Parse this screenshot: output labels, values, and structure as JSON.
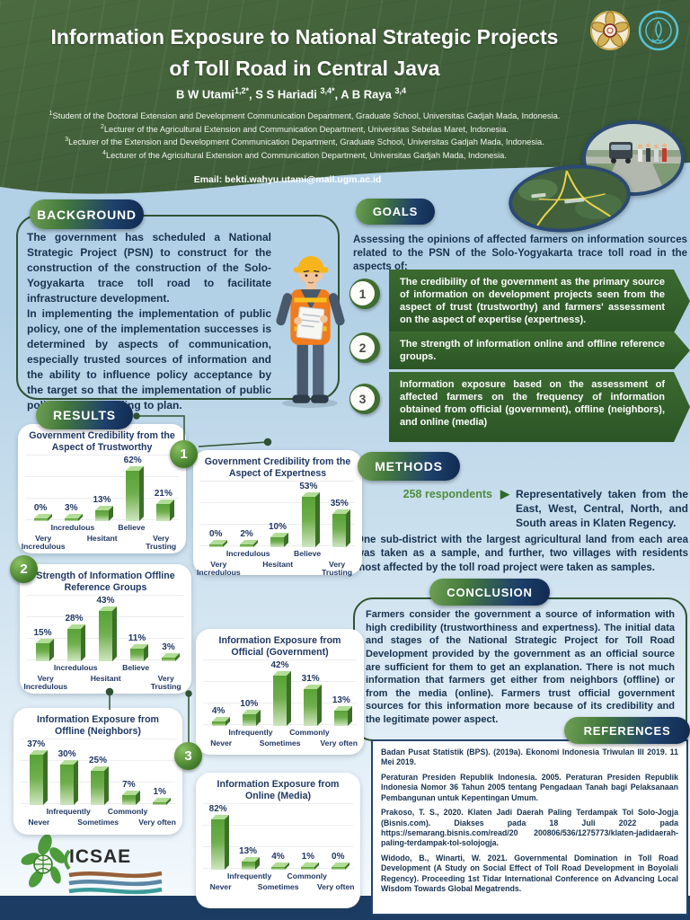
{
  "header": {
    "title_line1": "Information Exposure to National Strategic Projects",
    "title_line2": "of Toll Road in Central Java",
    "authors": [
      {
        "name": "B W Utami",
        "sup": "1,2*",
        "sep": ", "
      },
      {
        "name": "S S Hariadi ",
        "sup": "3,4*",
        "sep": ", "
      },
      {
        "name": "A B Raya ",
        "sup": "3,4",
        "sep": ""
      }
    ],
    "affiliations": [
      {
        "sup": "1",
        "text": "Student of the Doctoral Extension and Development Communication Department, Graduate School, Universitas Gadjah Mada, Indonesia."
      },
      {
        "sup": "2",
        "text": "Lecturer of the Agricultural Extension and Communication Department, Universitas Sebelas Maret, Indonesia."
      },
      {
        "sup": "3",
        "text": "Lecturer of the Extension and Development Communication Department, Graduate School, Universitas Gadjah Mada, Indonesia."
      },
      {
        "sup": "4",
        "text": "Lecturer of the Agricultural Extension and Communication Department, Universitas Gadjah Mada, Indonesia."
      }
    ],
    "email": "Email: bekti.wahyu.utami@mail.ugm.ac.id",
    "logos": [
      "ugm-logo",
      "uns-logo"
    ]
  },
  "background": {
    "label": "BACKGROUND",
    "para1": "The government has scheduled a National Strategic Project (PSN) to construct for the construction of the construction of the Solo-Yogyakarta trace toll road to facilitate infrastructure development.",
    "para2": "In implementing the implementation of public policy, one of the implementation successes is determined by aspects of communication, especially trusted sources of information and the ability to influence policy acceptance by the target so that the implementation of public policy goes according to plan."
  },
  "goals": {
    "label": "GOALS",
    "intro": "Assessing the opinions of affected farmers on information sources related to the PSN of the Solo-Yogyakarta trace toll road in the aspects of:",
    "items": [
      {
        "num": "1",
        "text": "The credibility of the government as the primary source of information on development projects seen from the aspect of trust (trustworthy) and farmers' assessment on the aspect of expertise (expertness)."
      },
      {
        "num": "2",
        "text": "The strength of information online and offline reference groups."
      },
      {
        "num": "3",
        "text": "Information exposure based on the assessment of affected farmers on the frequency of information obtained from official (government), offline (neighbors), and online (media)"
      }
    ]
  },
  "results": {
    "label": "RESULTS",
    "badges": [
      "1",
      "2",
      "3"
    ]
  },
  "methods": {
    "label": "METHODS",
    "respondents": "258 respondents",
    "arrow_icon": "▶",
    "taken_text": "Representatively taken from the East, West, Central, North, and South areas in Klaten Regency.",
    "para": "One sub-district with the largest agricultural land from each area was taken as a sample, and further, two villages with residents most affected by the toll road project were taken as samples."
  },
  "conclusion": {
    "label": "CONCLUSION",
    "text": "Farmers consider the government a source of information with high credibility (trustworthiness and expertness). The initial data and stages of the National Strategic Project for Toll Road Development provided by the government as an official source are sufficient for them to get an explanation. There is not much information that farmers get either from neighbors (offline) or from the media (online). Farmers trust official government sources for this information more because of its credibility and the legitimate power aspect."
  },
  "references": {
    "label": "REFERENCES",
    "items": [
      "Badan Pusat Statistik (BPS). (2019a). Ekonomi Indonesia Triwulan III 2019. 11 Mei 2019.",
      "Peraturan Presiden Republik Indonesia. 2005. Peraturan Presiden Republik Indonesia Nomor 36 Tahun 2005 tentang Pengadaan Tanah bagi Pelaksanaan Pembangunan untuk Kepentingan Umum.",
      "Prakoso, T. S., 2020. Klaten Jadi Daerah Paling Terdampak Tol Solo-Jogja (Bisnis.com). Diakses pada 18 Juli 2022 pada https://semarang.bisnis.com/read/20 200806/536/1275773/klaten-jadidaerah-paling-terdampak-tol-solojogja.",
      "Widodo, B., Winarti, W. 2021. Governmental Domination in Toll Road Development (A Study on Social Effect of Toll Road Development in Boyolali Regency). Proceeding 1st Tidar International Conference on Advancing Local Wisdom Towards Global Megatrends."
    ]
  },
  "footer": {
    "logo_text": "ICSAE"
  },
  "colors": {
    "header_green": "#41603a",
    "body_blue": "#b3d1e6",
    "dark_navy_text": "#16324f",
    "bar_green": "#58a238",
    "goal_arrow_green": "#2c5526",
    "pill_green": "#6fa054",
    "pill_navy": "#102a50",
    "footer_navy": "#1c3c63",
    "respondents_green": "#4e8d3e"
  },
  "chart_data": [
    {
      "type": "bar",
      "title": "Government Credibility from the Aspect of Trustworthy",
      "unit": "%",
      "categories": [
        "Very Incredulous",
        "Incredulous",
        "Hesitant",
        "Believe",
        "Very Trusting"
      ],
      "values": [
        0,
        3,
        13,
        62,
        21
      ]
    },
    {
      "type": "bar",
      "title": "Government Credibility from the Aspect of Expertness",
      "unit": "%",
      "categories": [
        "Very Incredulous",
        "Incredulous",
        "Hesitant",
        "Believe",
        "Very Trusting"
      ],
      "values": [
        0,
        2,
        10,
        53,
        35
      ]
    },
    {
      "type": "bar",
      "title": "Strength of Information Offline Reference Groups",
      "unit": "%",
      "categories": [
        "Very Incredulous",
        "Incredulous",
        "Hesitant",
        "Believe",
        "Very Trusting"
      ],
      "values": [
        15,
        28,
        43,
        11,
        3
      ]
    },
    {
      "type": "bar",
      "title": "Information Exposure from Official (Government)",
      "unit": "%",
      "categories": [
        "Never",
        "Infrequently",
        "Sometimes",
        "Commonly",
        "Very often"
      ],
      "values": [
        4,
        10,
        42,
        31,
        13
      ]
    },
    {
      "type": "bar",
      "title": "Information Exposure from Offline (Neighbors)",
      "unit": "%",
      "categories": [
        "Never",
        "Infrequently",
        "Sometimes",
        "Commonly",
        "Very often"
      ],
      "values": [
        37,
        30,
        25,
        7,
        1
      ]
    },
    {
      "type": "bar",
      "title": "Information Exposure from Online (Media)",
      "unit": "%",
      "categories": [
        "Never",
        "Infrequently",
        "Sometimes",
        "Commonly",
        "Very often"
      ],
      "values": [
        82,
        13,
        4,
        1,
        0
      ]
    }
  ]
}
